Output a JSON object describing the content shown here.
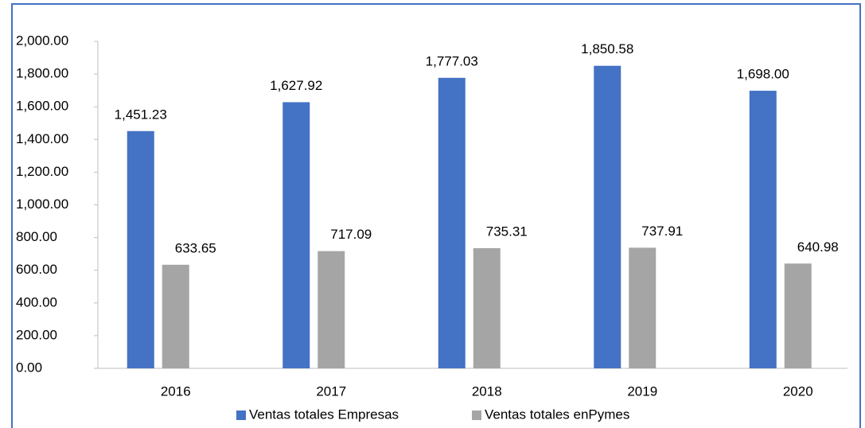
{
  "chart_data": {
    "type": "bar",
    "categories": [
      "2016",
      "2017",
      "2018",
      "2019",
      "2020"
    ],
    "series": [
      {
        "name": "Ventas totales Empresas",
        "color": "#4472c4",
        "values": [
          1451.23,
          1627.92,
          1777.03,
          1850.58,
          1698.0
        ],
        "value_labels": [
          "1,451.23",
          "1,627.92",
          "1,777.03",
          "1,850.58",
          "1,698.00"
        ]
      },
      {
        "name": "Ventas totales enPymes",
        "color": "#a5a5a5",
        "values": [
          633.65,
          717.09,
          735.31,
          737.91,
          640.98
        ],
        "value_labels": [
          "633.65",
          "717.09",
          "735.31",
          "737.91",
          "640.98"
        ]
      }
    ],
    "ylim": [
      0,
      2000
    ],
    "yticks": [
      {
        "value": 0,
        "label": "0.00"
      },
      {
        "value": 200,
        "label": "200.00"
      },
      {
        "value": 400,
        "label": "400.00"
      },
      {
        "value": 600,
        "label": "600.00"
      },
      {
        "value": 800,
        "label": "800.00"
      },
      {
        "value": 1000,
        "label": "1,000.00"
      },
      {
        "value": 1200,
        "label": "1,200.00"
      },
      {
        "value": 1400,
        "label": "1,400.00"
      },
      {
        "value": 1600,
        "label": "1,600.00"
      },
      {
        "value": 1800,
        "label": "1,800.00"
      },
      {
        "value": 2000,
        "label": "2,000.00"
      }
    ],
    "legend": "bottom"
  }
}
